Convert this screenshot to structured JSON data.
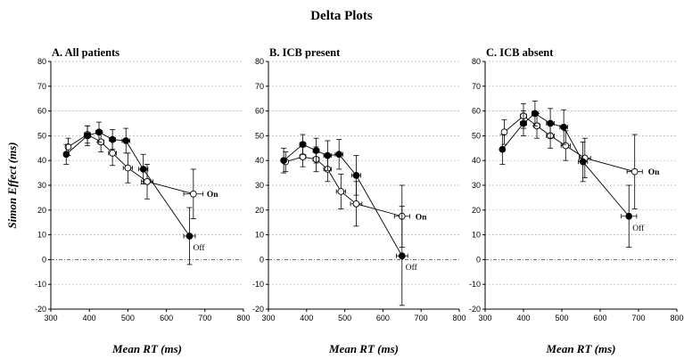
{
  "figure_title": "Delta Plots",
  "chart_data": [
    {
      "type": "line",
      "title": "A. All patients",
      "xlabel": "Mean RT (ms)",
      "ylabel": "Simon Effect (ms)",
      "xlim": [
        300,
        800
      ],
      "ylim": [
        -20,
        80
      ],
      "xticks": [
        300,
        400,
        500,
        600,
        700,
        800
      ],
      "yticks": [
        -20,
        -10,
        0,
        10,
        20,
        30,
        40,
        50,
        60,
        70,
        80
      ],
      "grid": "horizontal dotted",
      "series": [
        {
          "name": "On",
          "marker": "open-circle",
          "points": [
            {
              "x": 345,
              "y": 45.5,
              "yerr": 3.5,
              "xerr": 5
            },
            {
              "x": 395,
              "y": 50.5,
              "yerr": 3.5,
              "xerr": 8
            },
            {
              "x": 430,
              "y": 47.5,
              "yerr": 4,
              "xerr": 8
            },
            {
              "x": 460,
              "y": 43,
              "yerr": 5,
              "xerr": 10
            },
            {
              "x": 500,
              "y": 37,
              "yerr": 6,
              "xerr": 12
            },
            {
              "x": 550,
              "y": 31.5,
              "yerr": 7,
              "xerr": 15
            },
            {
              "x": 670,
              "y": 26.5,
              "yerr": 10,
              "xerr": 25
            }
          ]
        },
        {
          "name": "Off",
          "marker": "filled-circle",
          "points": [
            {
              "x": 340,
              "y": 42.5,
              "yerr": 4,
              "xerr": 5
            },
            {
              "x": 395,
              "y": 50,
              "yerr": 4,
              "xerr": 8
            },
            {
              "x": 425,
              "y": 51.5,
              "yerr": 4,
              "xerr": 8
            },
            {
              "x": 460,
              "y": 48.5,
              "yerr": 4,
              "xerr": 8
            },
            {
              "x": 495,
              "y": 48,
              "yerr": 5,
              "xerr": 10
            },
            {
              "x": 540,
              "y": 36.5,
              "yerr": 6,
              "xerr": 12
            },
            {
              "x": 660,
              "y": 9.5,
              "yerr": 11.5,
              "xerr": 15
            }
          ]
        }
      ]
    },
    {
      "type": "line",
      "title": "B. ICB present",
      "xlabel": "Mean RT (ms)",
      "ylabel": "",
      "xlim": [
        300,
        800
      ],
      "ylim": [
        -20,
        80
      ],
      "xticks": [
        300,
        400,
        500,
        600,
        700,
        800
      ],
      "yticks": [
        -20,
        -10,
        0,
        10,
        20,
        30,
        40,
        50,
        60,
        70,
        80
      ],
      "grid": "horizontal dotted",
      "series": [
        {
          "name": "On",
          "marker": "open-circle",
          "points": [
            {
              "x": 345,
              "y": 39.5,
              "yerr": 4,
              "xerr": 5
            },
            {
              "x": 390,
              "y": 41.5,
              "yerr": 4,
              "xerr": 8
            },
            {
              "x": 425,
              "y": 40.5,
              "yerr": 5,
              "xerr": 8
            },
            {
              "x": 455,
              "y": 36.5,
              "yerr": 5,
              "xerr": 10
            },
            {
              "x": 490,
              "y": 27.5,
              "yerr": 7,
              "xerr": 12
            },
            {
              "x": 530,
              "y": 22.5,
              "yerr": 9,
              "xerr": 15
            },
            {
              "x": 650,
              "y": 17.5,
              "yerr": 12.5,
              "xerr": 20
            }
          ]
        },
        {
          "name": "Off",
          "marker": "filled-circle",
          "points": [
            {
              "x": 340,
              "y": 40,
              "yerr": 5,
              "xerr": 5
            },
            {
              "x": 390,
              "y": 46.5,
              "yerr": 4,
              "xerr": 8
            },
            {
              "x": 425,
              "y": 44,
              "yerr": 5,
              "xerr": 8
            },
            {
              "x": 455,
              "y": 42,
              "yerr": 6,
              "xerr": 10
            },
            {
              "x": 485,
              "y": 42.5,
              "yerr": 6,
              "xerr": 10
            },
            {
              "x": 530,
              "y": 34,
              "yerr": 8,
              "xerr": 12
            },
            {
              "x": 650,
              "y": 1.5,
              "yerr": 20,
              "xerr": 15
            }
          ]
        }
      ]
    },
    {
      "type": "line",
      "title": "C. ICB absent",
      "xlabel": "Mean RT (ms)",
      "ylabel": "",
      "xlim": [
        300,
        800
      ],
      "ylim": [
        -20,
        80
      ],
      "xticks": [
        300,
        400,
        500,
        600,
        700,
        800
      ],
      "yticks": [
        -20,
        -10,
        0,
        10,
        20,
        30,
        40,
        50,
        60,
        70,
        80
      ],
      "grid": "horizontal dotted",
      "series": [
        {
          "name": "On",
          "marker": "open-circle",
          "points": [
            {
              "x": 350,
              "y": 51.5,
              "yerr": 5,
              "xerr": 6
            },
            {
              "x": 400,
              "y": 58,
              "yerr": 5,
              "xerr": 8
            },
            {
              "x": 435,
              "y": 54,
              "yerr": 5,
              "xerr": 8
            },
            {
              "x": 470,
              "y": 50,
              "yerr": 5,
              "xerr": 10
            },
            {
              "x": 510,
              "y": 46,
              "yerr": 6,
              "xerr": 12
            },
            {
              "x": 560,
              "y": 41,
              "yerr": 8,
              "xerr": 15
            },
            {
              "x": 690,
              "y": 35.5,
              "yerr": 15,
              "xerr": 20
            }
          ]
        },
        {
          "name": "Off",
          "marker": "filled-circle",
          "points": [
            {
              "x": 345,
              "y": 44.5,
              "yerr": 6,
              "xerr": 6
            },
            {
              "x": 400,
              "y": 55,
              "yerr": 5,
              "xerr": 8
            },
            {
              "x": 430,
              "y": 59,
              "yerr": 5,
              "xerr": 8
            },
            {
              "x": 470,
              "y": 55,
              "yerr": 6,
              "xerr": 10
            },
            {
              "x": 505,
              "y": 53.5,
              "yerr": 7,
              "xerr": 10
            },
            {
              "x": 555,
              "y": 39.5,
              "yerr": 8,
              "xerr": 12
            },
            {
              "x": 675,
              "y": 17.5,
              "yerr": 12.5,
              "xerr": 20
            }
          ]
        }
      ]
    }
  ]
}
